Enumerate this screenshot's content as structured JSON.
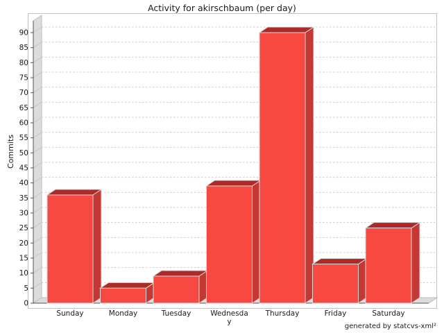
{
  "chart_data": {
    "type": "bar",
    "title": "Activity for akirschbaum (per day)",
    "xlabel": "",
    "ylabel": "Commits",
    "categories": [
      "Sunday",
      "Monday",
      "Tuesday",
      "Wednesday",
      "Thursday",
      "Friday",
      "Saturday"
    ],
    "category_display_lines": [
      [
        "Sunday"
      ],
      [
        "Monday"
      ],
      [
        "Tuesday"
      ],
      [
        "Wednesda",
        "y"
      ],
      [
        "Thursday"
      ],
      [
        "Friday"
      ],
      [
        "Saturday"
      ]
    ],
    "values": [
      36,
      5,
      9,
      39,
      90,
      13,
      25
    ],
    "ylim": [
      0,
      93
    ],
    "yticks": [
      0,
      5,
      10,
      15,
      20,
      25,
      30,
      35,
      40,
      45,
      50,
      55,
      60,
      65,
      70,
      75,
      80,
      85,
      90
    ],
    "grid": "horizontal-dashed",
    "legend": "none",
    "style": {
      "bar_front": "#F84842",
      "bar_top": "#AC2B28",
      "bar_side": "#C43834",
      "bar_outline": "#D9D9D9",
      "wall_fill": "#DCDCDC",
      "wall_edge": "#BDBDBD",
      "grid_color": "#CCCCCC",
      "axis_color": "#555555",
      "text_color": "#1a1a1a",
      "border_color": "#BFBFBF",
      "background": "#FFFFFF"
    }
  },
  "footer": {
    "credit": "generated by statcvs-xml²"
  }
}
